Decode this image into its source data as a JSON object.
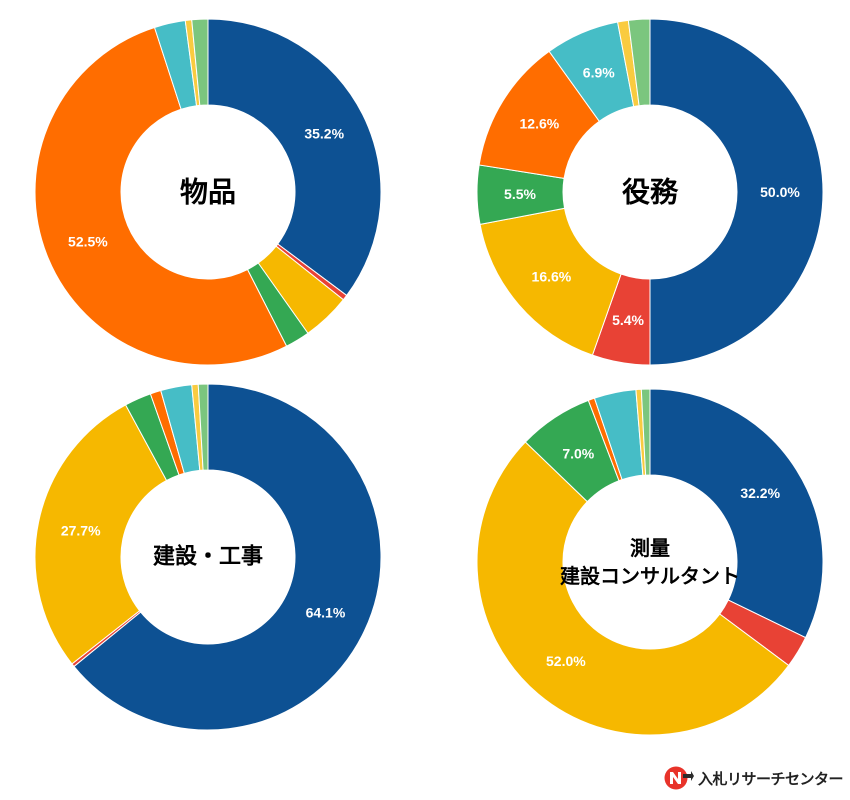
{
  "chart_data": [
    {
      "type": "pie",
      "title": "物品",
      "series": [
        {
          "values": [
            35.2,
            0.5,
            4.5,
            2.3,
            52.5,
            2.9,
            0.6,
            1.5
          ],
          "labels": [
            "35.2%",
            "",
            "",
            "",
            "52.5%",
            "",
            "",
            ""
          ]
        }
      ],
      "colors": [
        "#0D5193",
        "#E84235",
        "#F6B800",
        "#34A853",
        "#FF6D00",
        "#46BDC6",
        "#F9CB40",
        "#7BC67E"
      ]
    },
    {
      "type": "pie",
      "title": "役務",
      "series": [
        {
          "values": [
            50.0,
            5.4,
            16.6,
            5.5,
            12.6,
            6.9,
            1.0,
            2.0
          ],
          "labels": [
            "50.0%",
            "5.4%",
            "16.6%",
            "5.5%",
            "12.6%",
            "6.9%",
            "",
            ""
          ]
        }
      ],
      "colors": [
        "#0D5193",
        "#E84235",
        "#F6B800",
        "#34A853",
        "#FF6D00",
        "#46BDC6",
        "#F9CB40",
        "#7BC67E"
      ]
    },
    {
      "type": "pie",
      "title": "建設・工事",
      "series": [
        {
          "values": [
            64.1,
            0.3,
            27.7,
            2.5,
            1.0,
            2.9,
            0.6,
            0.9
          ],
          "labels": [
            "64.1%",
            "",
            "27.7%",
            "",
            "",
            "",
            "",
            ""
          ]
        }
      ],
      "colors": [
        "#0D5193",
        "#E84235",
        "#F6B800",
        "#34A853",
        "#FF6D00",
        "#46BDC6",
        "#F9CB40",
        "#7BC67E"
      ]
    },
    {
      "type": "pie",
      "title": "測量\n建設コンサルタント",
      "title_lines": [
        "測量",
        "建設コンサルタント"
      ],
      "series": [
        {
          "values": [
            32.2,
            3.0,
            52.0,
            7.0,
            0.6,
            3.9,
            0.5,
            0.8
          ],
          "labels": [
            "32.2%",
            "",
            "52.0%",
            "7.0%",
            "",
            "",
            "",
            ""
          ]
        }
      ],
      "colors": [
        "#0D5193",
        "#E84235",
        "#F6B800",
        "#34A853",
        "#FF6D00",
        "#46BDC6",
        "#F9CB40",
        "#7BC67E"
      ]
    }
  ],
  "brand": {
    "name": "入札リサーチセンター",
    "logo": "nyusatsu-logo-icon",
    "logo_color": "#E8332A"
  }
}
